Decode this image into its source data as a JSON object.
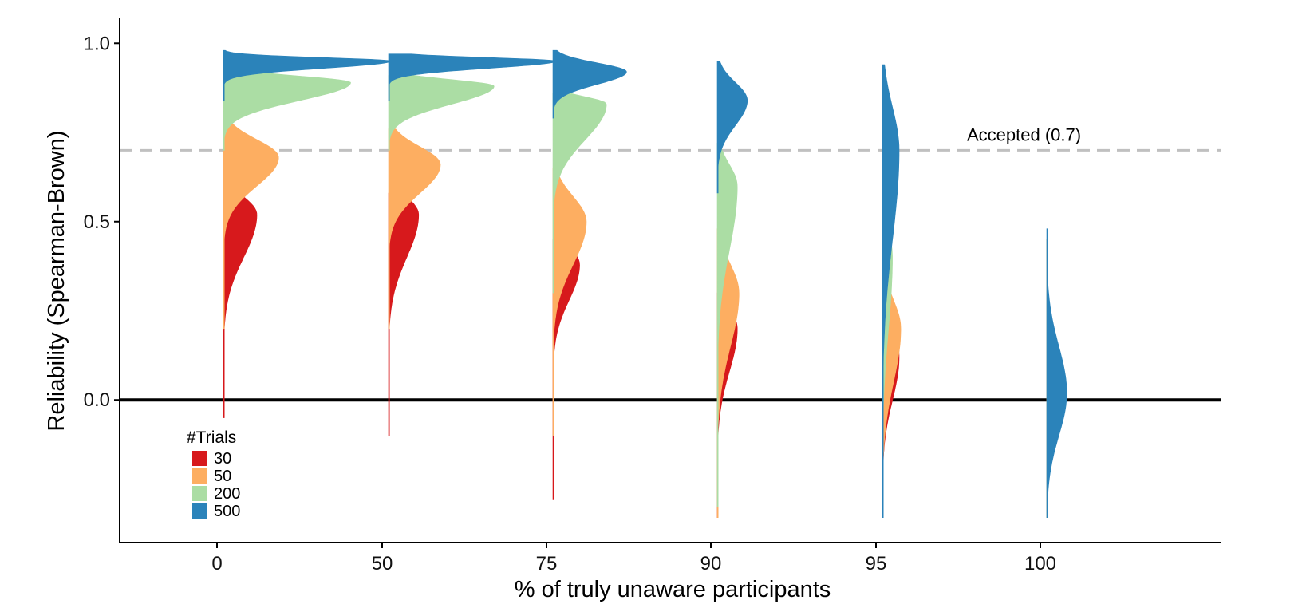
{
  "chart_data": {
    "type": "violin",
    "ylabel": "Reliability (Spearman-Brown)",
    "xlabel": "% of truly unaware participants",
    "categories": [
      "0",
      "50",
      "75",
      "90",
      "95",
      "100"
    ],
    "y_ticks": [
      0.0,
      0.5,
      1.0
    ],
    "y_tick_labels": [
      "0.0",
      "0.5",
      "1.0"
    ],
    "ylim": [
      -0.4,
      1.07
    ],
    "grid": false,
    "reference_lines": [
      {
        "y": 0.0,
        "style": "solid",
        "color": "#000000"
      },
      {
        "y": 0.7,
        "style": "dashed",
        "color": "#c0c0c0",
        "label": "Accepted (0.7)"
      }
    ],
    "legend": {
      "title": "#Trials",
      "position": "bottom-left",
      "items": [
        {
          "label": "30",
          "color": "#d7191c"
        },
        {
          "label": "50",
          "color": "#fdae61"
        },
        {
          "label": "200",
          "color": "#abdda4"
        },
        {
          "label": "500",
          "color": "#2b83ba"
        }
      ]
    },
    "series": [
      {
        "name": "30",
        "color": "#d7191c",
        "distributions": [
          {
            "category": "0",
            "ymin": -0.05,
            "ymax": 0.58,
            "mode": 0.52,
            "sd_lo": 0.12,
            "sd_hi": 0.05,
            "width": 0.2
          },
          {
            "category": "50",
            "ymin": -0.1,
            "ymax": 0.58,
            "mode": 0.52,
            "sd_lo": 0.12,
            "sd_hi": 0.05,
            "width": 0.18
          },
          {
            "category": "75",
            "ymin": -0.28,
            "ymax": 0.45,
            "mode": 0.38,
            "sd_lo": 0.1,
            "sd_hi": 0.05,
            "width": 0.16
          },
          {
            "category": "90",
            "ymin": -0.33,
            "ymax": 0.3,
            "mode": 0.2,
            "sd_lo": 0.12,
            "sd_hi": 0.06,
            "width": 0.12
          },
          {
            "category": "95",
            "ymin": -0.33,
            "ymax": 0.3,
            "mode": 0.12,
            "sd_lo": 0.12,
            "sd_hi": 0.08,
            "width": 0.1
          },
          {
            "category": "100",
            "ymin": -0.33,
            "ymax": 0.45,
            "mode": 0.0,
            "sd_lo": 0.1,
            "sd_hi": 0.1,
            "width": 0.02
          }
        ]
      },
      {
        "name": "50",
        "color": "#fdae61",
        "distributions": [
          {
            "category": "0",
            "ymin": 0.2,
            "ymax": 0.78,
            "mode": 0.68,
            "sd_lo": 0.08,
            "sd_hi": 0.05,
            "width": 0.33
          },
          {
            "category": "50",
            "ymin": 0.2,
            "ymax": 0.76,
            "mode": 0.66,
            "sd_lo": 0.08,
            "sd_hi": 0.05,
            "width": 0.31
          },
          {
            "category": "75",
            "ymin": -0.1,
            "ymax": 0.65,
            "mode": 0.5,
            "sd_lo": 0.12,
            "sd_hi": 0.07,
            "width": 0.2
          },
          {
            "category": "90",
            "ymin": -0.33,
            "ymax": 0.48,
            "mode": 0.3,
            "sd_lo": 0.15,
            "sd_hi": 0.08,
            "width": 0.13
          },
          {
            "category": "95",
            "ymin": -0.33,
            "ymax": 0.4,
            "mode": 0.2,
            "sd_lo": 0.15,
            "sd_hi": 0.08,
            "width": 0.11
          },
          {
            "category": "100",
            "ymin": -0.33,
            "ymax": 0.45,
            "mode": 0.0,
            "sd_lo": 0.1,
            "sd_hi": 0.1,
            "width": 0.02
          }
        ]
      },
      {
        "name": "200",
        "color": "#abdda4",
        "distributions": [
          {
            "category": "0",
            "ymin": 0.7,
            "ymax": 0.92,
            "mode": 0.89,
            "sd_lo": 0.05,
            "sd_hi": 0.018,
            "width": 0.76
          },
          {
            "category": "50",
            "ymin": 0.7,
            "ymax": 0.91,
            "mode": 0.88,
            "sd_lo": 0.05,
            "sd_hi": 0.018,
            "width": 0.63
          },
          {
            "category": "75",
            "ymin": 0.3,
            "ymax": 0.86,
            "mode": 0.83,
            "sd_lo": 0.1,
            "sd_hi": 0.02,
            "width": 0.32
          },
          {
            "category": "90",
            "ymin": -0.3,
            "ymax": 0.72,
            "mode": 0.6,
            "sd_lo": 0.18,
            "sd_hi": 0.06,
            "width": 0.12
          },
          {
            "category": "95",
            "ymin": -0.33,
            "ymax": 0.55,
            "mode": 0.4,
            "sd_lo": 0.2,
            "sd_hi": 0.08,
            "width": 0.06
          },
          {
            "category": "100",
            "ymin": -0.33,
            "ymax": 0.45,
            "mode": 0.0,
            "sd_lo": 0.1,
            "sd_hi": 0.1,
            "width": 0.02
          }
        ]
      },
      {
        "name": "500",
        "color": "#2b83ba",
        "distributions": [
          {
            "category": "0",
            "ymin": 0.84,
            "ymax": 0.98,
            "mode": 0.95,
            "sd_lo": 0.02,
            "sd_hi": 0.01,
            "width": 1.0
          },
          {
            "category": "50",
            "ymin": 0.84,
            "ymax": 0.97,
            "mode": 0.95,
            "sd_lo": 0.02,
            "sd_hi": 0.01,
            "width": 1.0
          },
          {
            "category": "75",
            "ymin": 0.79,
            "ymax": 0.98,
            "mode": 0.92,
            "sd_lo": 0.035,
            "sd_hi": 0.025,
            "width": 0.44
          },
          {
            "category": "90",
            "ymin": 0.58,
            "ymax": 0.95,
            "mode": 0.84,
            "sd_lo": 0.07,
            "sd_hi": 0.05,
            "width": 0.18
          },
          {
            "category": "95",
            "ymin": -0.33,
            "ymax": 0.94,
            "mode": 0.7,
            "sd_lo": 0.25,
            "sd_hi": 0.12,
            "width": 0.1
          },
          {
            "category": "100",
            "ymin": -0.33,
            "ymax": 0.48,
            "mode": 0.02,
            "sd_lo": 0.12,
            "sd_hi": 0.13,
            "width": 0.12
          }
        ]
      }
    ]
  }
}
